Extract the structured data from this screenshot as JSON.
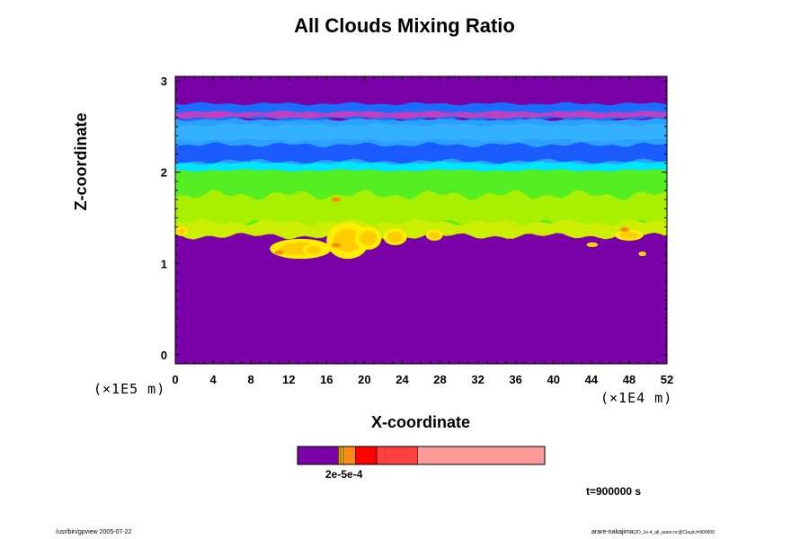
{
  "chart_data": {
    "type": "heatmap",
    "title": "All Clouds Mixing Ratio",
    "xlabel": "X-coordinate",
    "ylabel": "Z-coordinate",
    "x_unit_label": "(×1E4 m)",
    "z_unit_label": "(×1E5 m)",
    "x_ticks": [
      "0",
      "4",
      "8",
      "12",
      "16",
      "20",
      "24",
      "28",
      "32",
      "36",
      "40",
      "44",
      "48",
      "52"
    ],
    "y_ticks": [
      "0",
      "1",
      "2",
      "3"
    ],
    "xlim": [
      0,
      52
    ],
    "ylim": [
      -0.1,
      3.05
    ],
    "colorbar": {
      "label": "2e-5e-4",
      "segments": [
        {
          "color": "#7a00a8"
        },
        {
          "color": "#ffaa00"
        },
        {
          "color": "#ffdd00"
        },
        {
          "color": "#ff8c1a"
        },
        {
          "color": "#ff0000"
        },
        {
          "color": "#ff4040"
        },
        {
          "color": "#ff9a9a"
        }
      ]
    },
    "layers": [
      {
        "name": "upper-band",
        "z_range": [
          2.58,
          2.75
        ],
        "color": "#1a6dff"
      },
      {
        "name": "blue-band",
        "z_range": [
          2.1,
          2.58
        ],
        "color": "#2aa0ff"
      },
      {
        "name": "cyan-band",
        "z_range": [
          2.02,
          2.12
        ],
        "color": "#00e5ff"
      },
      {
        "name": "green-band",
        "z_range": [
          1.45,
          2.02
        ],
        "color": "#55ee22"
      },
      {
        "name": "yellow-cells",
        "z_range": [
          1.05,
          1.6
        ],
        "color": "#ffee00"
      }
    ]
  },
  "annotation": {
    "time": "t=900000 s"
  },
  "footer": {
    "left": "/usr/bin/gpview 2005-07-22",
    "right_main": "arare-nakajima",
    "right_small": "(2D_1e-4_all_arare.nc@Cloud,t=900000"
  }
}
